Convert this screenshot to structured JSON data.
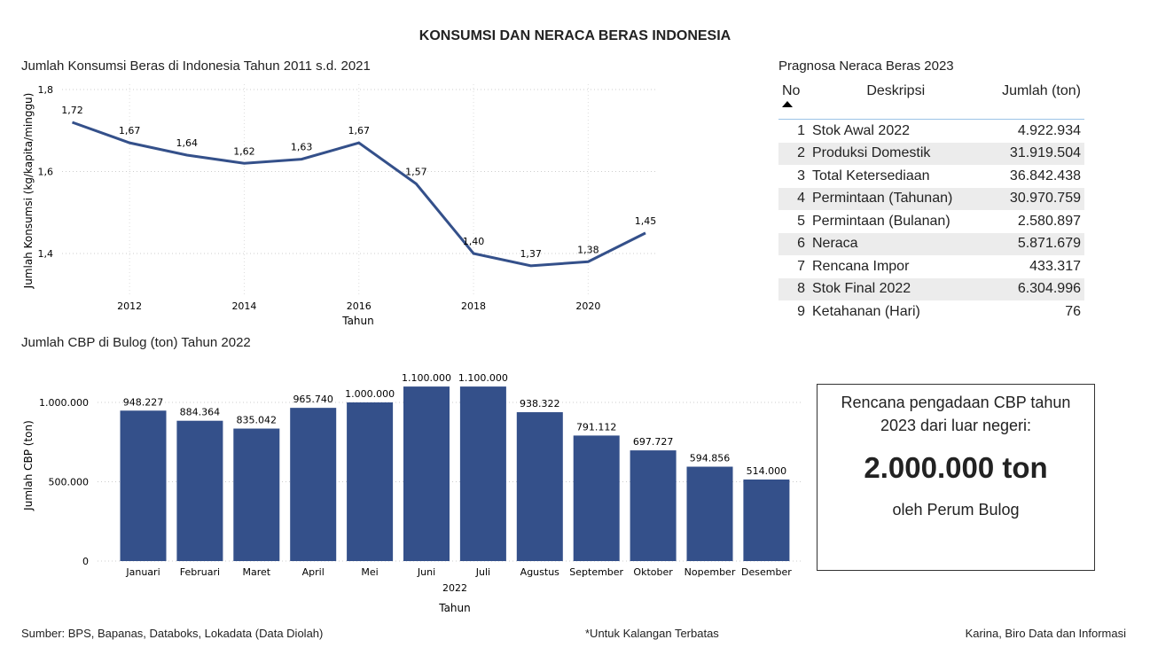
{
  "title": "KONSUMSI DAN NERACA BERAS INDONESIA",
  "chart_data": [
    {
      "type": "line",
      "title": "Jumlah Konsumsi Beras di Indonesia Tahun 2011 s.d. 2021",
      "xlabel": "Tahun",
      "ylabel": "Jumlah Konsumsi (kg/kapita/minggu)",
      "x": [
        2011,
        2012,
        2013,
        2014,
        2015,
        2016,
        2017,
        2018,
        2019,
        2020,
        2021
      ],
      "values": [
        1.72,
        1.67,
        1.64,
        1.62,
        1.63,
        1.67,
        1.57,
        1.4,
        1.37,
        1.38,
        1.45
      ],
      "labels": [
        "1,72",
        "1,67",
        "1,64",
        "1,62",
        "1,63",
        "1,67",
        "1,57",
        "1,40",
        "1,37",
        "1,38",
        "1,45"
      ],
      "xticks": [
        "2012",
        "2014",
        "2016",
        "2018",
        "2020"
      ],
      "yticks": [
        {
          "v": 1.4,
          "t": "1,4"
        },
        {
          "v": 1.6,
          "t": "1,6"
        },
        {
          "v": 1.8,
          "t": "1,8"
        }
      ],
      "ylim": [
        1.3,
        1.8
      ],
      "color": "#34508a",
      "grid": true
    },
    {
      "type": "bar",
      "title": "Jumlah CBP di Bulog (ton) Tahun 2022",
      "xlabel": "Tahun",
      "xgroup": "2022",
      "ylabel": "Jumlah CBP (ton)",
      "categories": [
        "Januari",
        "Februari",
        "Maret",
        "April",
        "Mei",
        "Juni",
        "Juli",
        "Agustus",
        "September",
        "Oktober",
        "Nopember",
        "Desember"
      ],
      "values": [
        948227,
        884364,
        835042,
        965740,
        1000000,
        1100000,
        1100000,
        938322,
        791112,
        697727,
        594856,
        514000
      ],
      "labels": [
        "948.227",
        "884.364",
        "835.042",
        "965.740",
        "1.000.000",
        "1.100.000",
        "1.100.000",
        "938.322",
        "791.112",
        "697.727",
        "594.856",
        "514.000"
      ],
      "yticks": [
        {
          "v": 0,
          "t": "0"
        },
        {
          "v": 500000,
          "t": "500.000"
        },
        {
          "v": 1000000,
          "t": "1.000.000"
        }
      ],
      "ylim": [
        0,
        1100000
      ],
      "color": "#34508a",
      "grid": true
    }
  ],
  "table": {
    "title": "Pragnosa Neraca Beras 2023",
    "headers": {
      "no": "No",
      "desc": "Deskripsi",
      "amount": "Jumlah (ton)"
    },
    "rows": [
      {
        "no": "1",
        "desc": "Stok Awal 2022",
        "amount": "4.922.934"
      },
      {
        "no": "2",
        "desc": "Produksi Domestik",
        "amount": "31.919.504"
      },
      {
        "no": "3",
        "desc": "Total Ketersediaan",
        "amount": "36.842.438"
      },
      {
        "no": "4",
        "desc": "Permintaan (Tahunan)",
        "amount": "30.970.759"
      },
      {
        "no": "5",
        "desc": "Permintaan (Bulanan)",
        "amount": "2.580.897"
      },
      {
        "no": "6",
        "desc": "Neraca",
        "amount": "5.871.679"
      },
      {
        "no": "7",
        "desc": "Rencana Impor",
        "amount": "433.317"
      },
      {
        "no": "8",
        "desc": "Stok Final 2022",
        "amount": "6.304.996"
      },
      {
        "no": "9",
        "desc": "Ketahanan (Hari)",
        "amount": "76"
      }
    ]
  },
  "callout": {
    "line1": "Rencana pengadaan CBP tahun 2023 dari luar negeri:",
    "big": "2.000.000 ton",
    "line2": "oleh Perum Bulog"
  },
  "footer": {
    "source": "Sumber: BPS, Bapanas, Databoks, Lokadata (Data Diolah)",
    "note": "*Untuk Kalangan Terbatas",
    "credit": "Karina, Biro Data dan Informasi"
  }
}
